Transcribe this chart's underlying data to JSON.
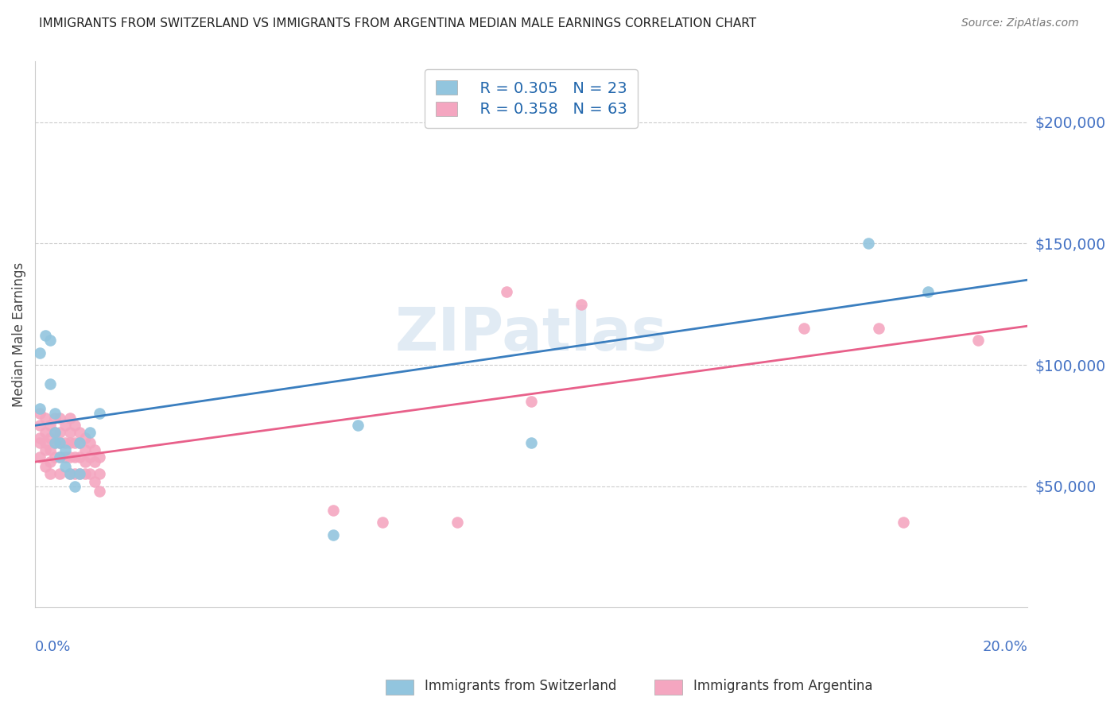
{
  "title": "IMMIGRANTS FROM SWITZERLAND VS IMMIGRANTS FROM ARGENTINA MEDIAN MALE EARNINGS CORRELATION CHART",
  "source": "Source: ZipAtlas.com",
  "ylabel": "Median Male Earnings",
  "ytick_values": [
    50000,
    100000,
    150000,
    200000
  ],
  "xmin": 0.0,
  "xmax": 0.2,
  "ymin": 0,
  "ymax": 225000,
  "switzerland_color": "#92c5de",
  "argentina_color": "#f4a6c0",
  "switzerland_line_color": "#3a7ebf",
  "argentina_line_color": "#e8608a",
  "legend_r_switzerland": "R = 0.305",
  "legend_n_switzerland": "N = 23",
  "legend_r_argentina": "R = 0.358",
  "legend_n_argentina": "N = 63",
  "watermark": "ZIPatlas",
  "ytick_color": "#4472c4",
  "xlabel_color": "#4472c4",
  "sw_intercept": 75000,
  "sw_slope": 300000,
  "ar_intercept": 60000,
  "ar_slope": 280000,
  "switzerland_x": [
    0.001,
    0.001,
    0.002,
    0.003,
    0.003,
    0.004,
    0.004,
    0.004,
    0.005,
    0.005,
    0.006,
    0.006,
    0.007,
    0.008,
    0.009,
    0.009,
    0.011,
    0.013,
    0.06,
    0.065,
    0.1,
    0.168,
    0.18
  ],
  "switzerland_y": [
    82000,
    105000,
    112000,
    92000,
    110000,
    80000,
    68000,
    72000,
    68000,
    62000,
    65000,
    58000,
    55000,
    50000,
    68000,
    55000,
    72000,
    80000,
    30000,
    75000,
    68000,
    150000,
    130000
  ],
  "argentina_x": [
    0.001,
    0.001,
    0.001,
    0.001,
    0.001,
    0.002,
    0.002,
    0.002,
    0.002,
    0.002,
    0.003,
    0.003,
    0.003,
    0.003,
    0.003,
    0.004,
    0.004,
    0.004,
    0.004,
    0.005,
    0.005,
    0.005,
    0.005,
    0.005,
    0.006,
    0.006,
    0.006,
    0.007,
    0.007,
    0.007,
    0.007,
    0.007,
    0.008,
    0.008,
    0.008,
    0.008,
    0.009,
    0.009,
    0.009,
    0.009,
    0.01,
    0.01,
    0.01,
    0.01,
    0.011,
    0.011,
    0.011,
    0.012,
    0.012,
    0.012,
    0.013,
    0.013,
    0.013,
    0.06,
    0.07,
    0.085,
    0.095,
    0.1,
    0.11,
    0.155,
    0.17,
    0.175,
    0.19
  ],
  "argentina_y": [
    80000,
    75000,
    70000,
    68000,
    62000,
    78000,
    72000,
    68000,
    65000,
    58000,
    75000,
    70000,
    65000,
    60000,
    55000,
    78000,
    72000,
    68000,
    62000,
    78000,
    72000,
    68000,
    62000,
    55000,
    75000,
    68000,
    62000,
    78000,
    72000,
    68000,
    62000,
    55000,
    75000,
    68000,
    62000,
    55000,
    72000,
    68000,
    62000,
    55000,
    70000,
    65000,
    60000,
    55000,
    68000,
    62000,
    55000,
    65000,
    60000,
    52000,
    62000,
    55000,
    48000,
    40000,
    35000,
    35000,
    130000,
    85000,
    125000,
    115000,
    115000,
    35000,
    110000
  ]
}
